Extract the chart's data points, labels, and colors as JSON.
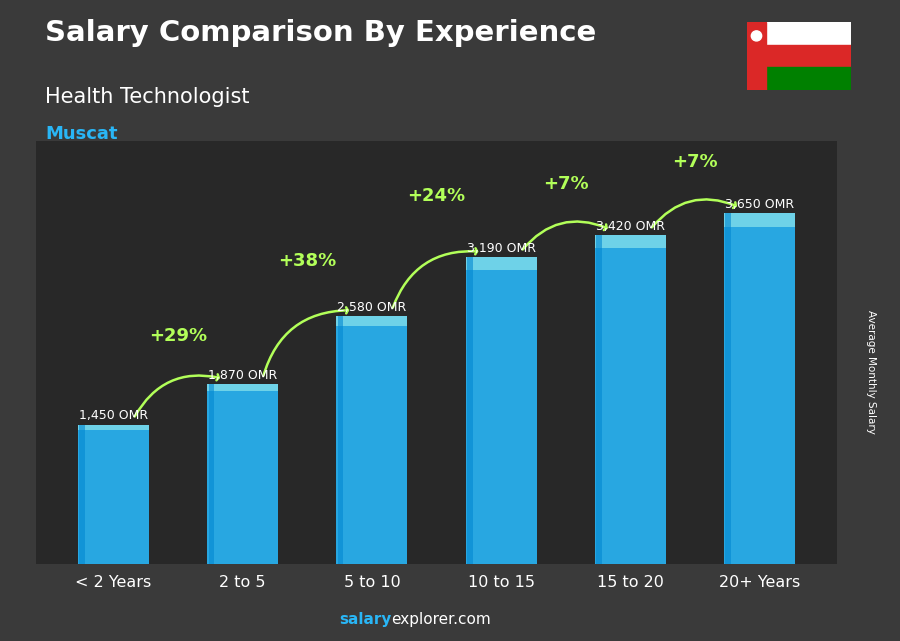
{
  "title_line1": "Salary Comparison By Experience",
  "title_line2": "Health Technologist",
  "subtitle": "Muscat",
  "categories": [
    "< 2 Years",
    "2 to 5",
    "5 to 10",
    "10 to 15",
    "15 to 20",
    "20+ Years"
  ],
  "values": [
    1450,
    1870,
    2580,
    3190,
    3420,
    3650
  ],
  "value_labels": [
    "1,450 OMR",
    "1,870 OMR",
    "2,580 OMR",
    "3,190 OMR",
    "3,420 OMR",
    "3,650 OMR"
  ],
  "pct_labels": [
    "+29%",
    "+38%",
    "+24%",
    "+7%",
    "+7%"
  ],
  "bar_color": "#29b6f6",
  "pct_color": "#b2ff59",
  "title_color": "#ffffff",
  "subtitle_color": "#29b6f6",
  "bg_color": "#3a3a3a",
  "ylabel_text": "Average Monthly Salary",
  "ylim_max": 4400
}
